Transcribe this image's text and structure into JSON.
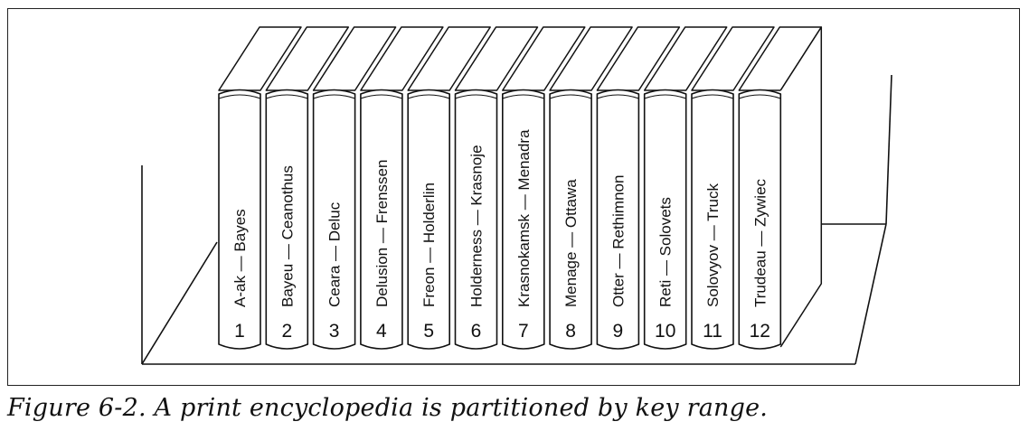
{
  "caption": "Figure 6-2. A print encyclopedia is partitioned by key range.",
  "volumes": [
    {
      "number": "1",
      "range": "A-ak — Bayes"
    },
    {
      "number": "2",
      "range": "Bayeu — Ceanothus"
    },
    {
      "number": "3",
      "range": "Ceara — Deluc"
    },
    {
      "number": "4",
      "range": "Delusion — Frenssen"
    },
    {
      "number": "5",
      "range": "Freon — Holderlin"
    },
    {
      "number": "6",
      "range": "Holderness — Krasnoje"
    },
    {
      "number": "7",
      "range": "Krasnokamsk — Menadra"
    },
    {
      "number": "8",
      "range": "Menage — Ottawa"
    },
    {
      "number": "9",
      "range": "Otter — Rethimnon"
    },
    {
      "number": "10",
      "range": "Reti — Solovets"
    },
    {
      "number": "11",
      "range": "Solovyov — Truck"
    },
    {
      "number": "12",
      "range": "Trudeau — Zywiec"
    }
  ]
}
